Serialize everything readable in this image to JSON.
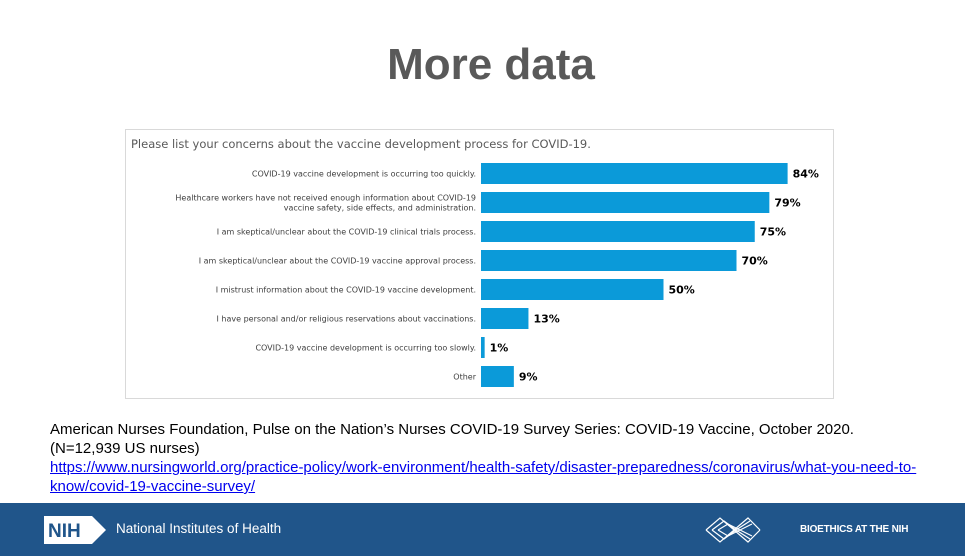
{
  "slide": {
    "title": "More data"
  },
  "chart_data": {
    "type": "bar",
    "orientation": "horizontal",
    "title": "Please list your concerns about the vaccine development process for COVID-19.",
    "categories": [
      [
        "COVID-19 vaccine development is occurring too quickly."
      ],
      [
        "Healthcare workers have not received enough information about COVID-19",
        "vaccine safety, side effects, and administration."
      ],
      [
        "I am skeptical/unclear about the COVID-19 clinical trials process."
      ],
      [
        "I am skeptical/unclear about the COVID-19 vaccine approval process."
      ],
      [
        "I mistrust information about the COVID-19 vaccine development."
      ],
      [
        "I have personal and/or religious reservations about vaccinations."
      ],
      [
        "COVID-19 vaccine development is occurring too slowly."
      ],
      [
        "Other"
      ]
    ],
    "values": [
      84,
      79,
      75,
      70,
      50,
      13,
      1,
      9
    ],
    "value_labels": [
      "84%",
      "79%",
      "75%",
      "70%",
      "50%",
      "13%",
      "1%",
      "9%"
    ],
    "xlim": [
      0,
      100
    ],
    "color": "#0b9ad9"
  },
  "citation": {
    "line1": "American Nurses Foundation, Pulse on the Nation’s Nurses COVID-19 Survey Series: COVID-19 Vaccine, October 2020.",
    "line2": "(N=12,939 US nurses)",
    "url_text": "https://www.nursingworld.org/practice-policy/work-environment/health-safety/disaster-preparedness/coronavirus/what-you-need-to-know/covid-19-vaccine-survey/"
  },
  "footer": {
    "logo_text": "NIH",
    "org_name": "National Institutes of Health",
    "right_text": "BIOETHICS AT THE NIH",
    "background": "#20558a"
  }
}
